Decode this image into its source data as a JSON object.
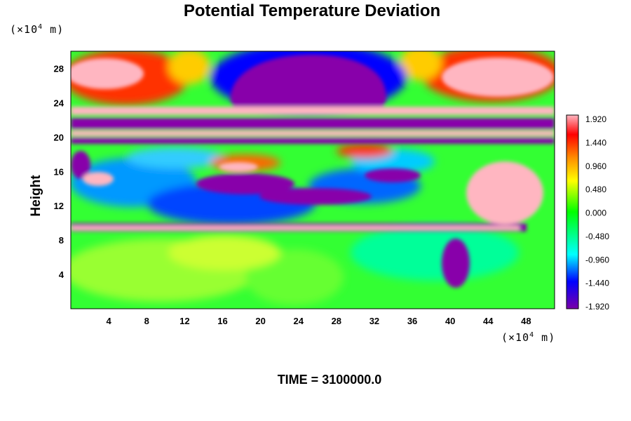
{
  "title": "Potential Temperature Deviation",
  "time_label": "TIME = 3100000.0",
  "chart_data": {
    "type": "heatmap",
    "title": "Potential Temperature Deviation",
    "xlabel": "",
    "ylabel": "Height",
    "x_unit": "(×10⁴ m)",
    "y_unit": "(×10⁴ m)",
    "x_unit_parts": {
      "base": "(×10",
      "exp": "4",
      "tail": " m)"
    },
    "y_unit_parts": {
      "base": "(×10",
      "exp": "4",
      "tail": " m)"
    },
    "xlim": [
      0,
      51
    ],
    "ylim": [
      0,
      30
    ],
    "x_ticks": [
      4,
      8,
      12,
      16,
      20,
      24,
      28,
      32,
      36,
      40,
      44,
      48
    ],
    "y_ticks": [
      4,
      8,
      12,
      16,
      20,
      24,
      28
    ],
    "colorbar": {
      "min": -1.92,
      "max": 1.92,
      "labels": [
        "1.920",
        "1.440",
        "0.960",
        "0.480",
        "0.000",
        "-0.480",
        "-0.960",
        "-1.440",
        "-1.920"
      ],
      "colors": [
        "#ffb6c1",
        "#ff0000",
        "#ff8c00",
        "#ffff00",
        "#00ff00",
        "#00ffff",
        "#0000ff",
        "#7a00a8"
      ]
    },
    "time": 3100000.0
  }
}
